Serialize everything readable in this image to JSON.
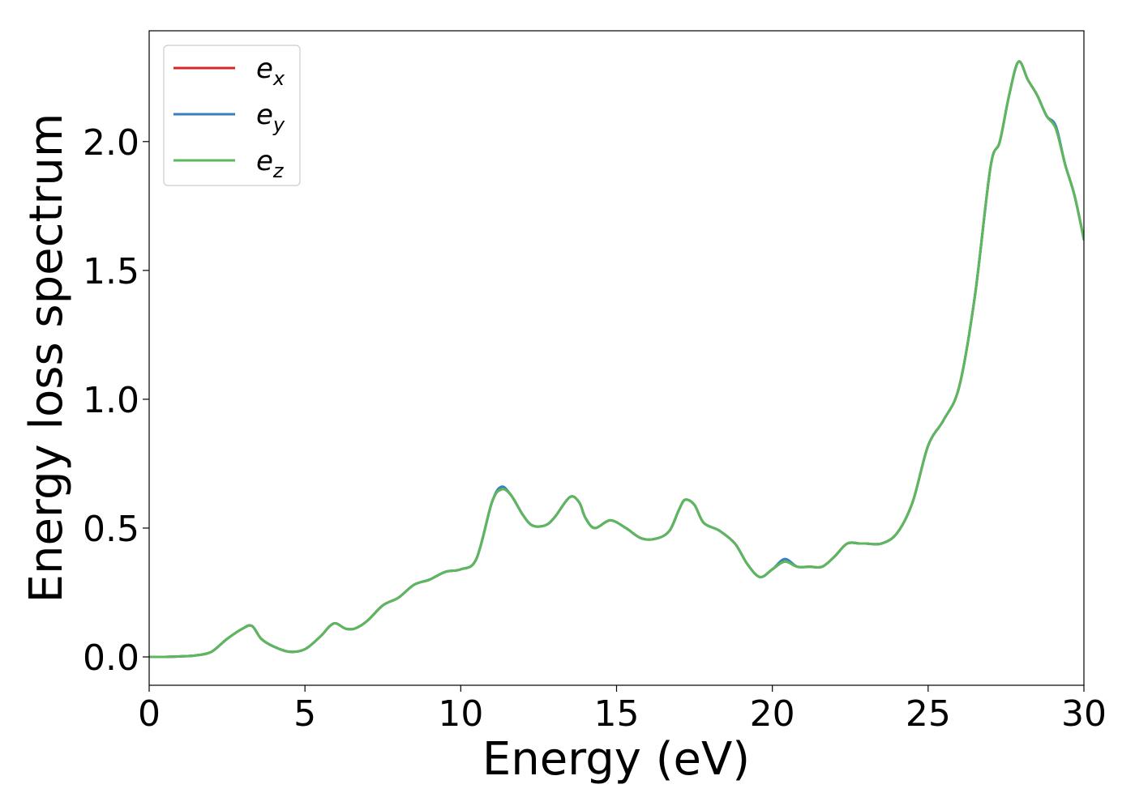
{
  "chart_data": {
    "type": "line",
    "xlabel": "Energy (eV)",
    "ylabel": "Energy loss spectrum",
    "xlim": [
      0,
      30
    ],
    "ylim": [
      -0.11,
      2.43
    ],
    "xticks": [
      0,
      5,
      10,
      15,
      20,
      25,
      30
    ],
    "xtick_labels": [
      "0",
      "5",
      "10",
      "15",
      "20",
      "25",
      "30"
    ],
    "yticks": [
      0.0,
      0.5,
      1.0,
      1.5,
      2.0
    ],
    "ytick_labels": [
      "0.0",
      "0.5",
      "1.0",
      "1.5",
      "2.0"
    ],
    "grid": false,
    "legend_position": "top-left",
    "x": [
      0,
      0.5,
      1,
      1.5,
      2,
      2.5,
      3,
      3.3,
      3.6,
      4,
      4.5,
      5,
      5.5,
      5.8,
      6,
      6.3,
      6.6,
      7,
      7.5,
      8,
      8.5,
      9,
      9.5,
      10,
      10.5,
      11,
      11.3,
      11.6,
      12,
      12.3,
      12.7,
      13,
      13.5,
      13.8,
      14,
      14.3,
      14.8,
      15.3,
      15.8,
      16.3,
      16.7,
      17,
      17.2,
      17.5,
      17.8,
      18.3,
      18.8,
      19.2,
      19.6,
      20,
      20.4,
      20.8,
      21.2,
      21.6,
      22,
      22.4,
      22.8,
      23,
      23.5,
      24,
      24.5,
      25,
      25.5,
      26,
      26.5,
      27,
      27.3,
      27.6,
      27.9,
      28.2,
      28.5,
      28.8,
      29.1,
      29.4,
      29.7,
      30
    ],
    "series": [
      {
        "name": "e_x",
        "label_base": "e",
        "label_sub": "x",
        "color": "#d62728",
        "values": [
          0.0,
          0.0,
          0.002,
          0.006,
          0.02,
          0.07,
          0.11,
          0.12,
          0.07,
          0.04,
          0.02,
          0.03,
          0.08,
          0.12,
          0.13,
          0.11,
          0.11,
          0.14,
          0.2,
          0.23,
          0.28,
          0.3,
          0.33,
          0.34,
          0.38,
          0.6,
          0.65,
          0.63,
          0.55,
          0.51,
          0.51,
          0.54,
          0.62,
          0.6,
          0.54,
          0.5,
          0.53,
          0.5,
          0.46,
          0.46,
          0.49,
          0.57,
          0.61,
          0.59,
          0.52,
          0.49,
          0.44,
          0.36,
          0.31,
          0.34,
          0.37,
          0.35,
          0.35,
          0.35,
          0.39,
          0.44,
          0.44,
          0.44,
          0.44,
          0.48,
          0.6,
          0.82,
          0.92,
          1.05,
          1.4,
          1.9,
          2.0,
          2.18,
          2.31,
          2.24,
          2.18,
          2.1,
          2.05,
          1.91,
          1.79,
          1.62
        ]
      },
      {
        "name": "e_y",
        "label_base": "e",
        "label_sub": "y",
        "color": "#3a7fbf",
        "values": [
          0.0,
          0.0,
          0.002,
          0.006,
          0.02,
          0.07,
          0.11,
          0.12,
          0.07,
          0.04,
          0.02,
          0.03,
          0.08,
          0.12,
          0.13,
          0.11,
          0.11,
          0.14,
          0.2,
          0.23,
          0.28,
          0.3,
          0.33,
          0.34,
          0.38,
          0.6,
          0.66,
          0.63,
          0.55,
          0.51,
          0.51,
          0.54,
          0.62,
          0.6,
          0.54,
          0.5,
          0.53,
          0.5,
          0.46,
          0.46,
          0.49,
          0.57,
          0.61,
          0.59,
          0.52,
          0.49,
          0.44,
          0.36,
          0.31,
          0.34,
          0.38,
          0.35,
          0.35,
          0.35,
          0.39,
          0.44,
          0.44,
          0.44,
          0.44,
          0.48,
          0.6,
          0.82,
          0.92,
          1.05,
          1.4,
          1.9,
          2.0,
          2.18,
          2.31,
          2.24,
          2.18,
          2.1,
          2.06,
          1.91,
          1.79,
          1.62
        ]
      },
      {
        "name": "e_z",
        "label_base": "e",
        "label_sub": "z",
        "color": "#5cb85c",
        "values": [
          0.0,
          0.0,
          0.002,
          0.006,
          0.02,
          0.07,
          0.11,
          0.12,
          0.07,
          0.04,
          0.02,
          0.03,
          0.08,
          0.12,
          0.13,
          0.11,
          0.11,
          0.14,
          0.2,
          0.23,
          0.28,
          0.3,
          0.33,
          0.34,
          0.38,
          0.6,
          0.65,
          0.63,
          0.55,
          0.51,
          0.51,
          0.54,
          0.62,
          0.6,
          0.54,
          0.5,
          0.53,
          0.5,
          0.46,
          0.46,
          0.49,
          0.57,
          0.61,
          0.59,
          0.52,
          0.49,
          0.44,
          0.36,
          0.31,
          0.34,
          0.37,
          0.35,
          0.35,
          0.35,
          0.39,
          0.44,
          0.44,
          0.44,
          0.44,
          0.48,
          0.6,
          0.82,
          0.92,
          1.05,
          1.4,
          1.9,
          2.0,
          2.18,
          2.31,
          2.24,
          2.18,
          2.1,
          2.05,
          1.91,
          1.79,
          1.62
        ]
      }
    ]
  }
}
